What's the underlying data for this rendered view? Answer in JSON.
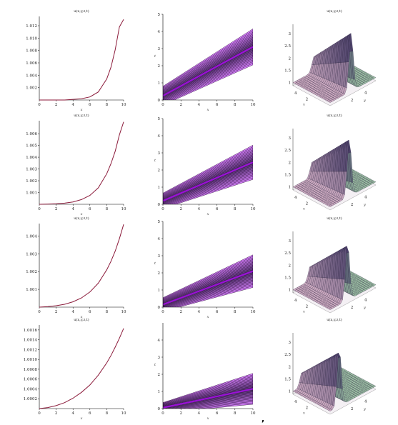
{
  "figure": {
    "bottom_mark": ","
  },
  "chart_data": [
    {
      "type": "line",
      "title": "u(x,y,z,t)",
      "xlabel": "x",
      "ylabel": "",
      "xlim": [
        0,
        10
      ],
      "ylim": [
        1.0,
        1.0135
      ],
      "x_ticks": [
        "0",
        "2",
        "4",
        "6",
        "8",
        "10"
      ],
      "y_ticks": [
        "1.002",
        "1.004",
        "1.006",
        "1.008",
        "1.010",
        "1.012"
      ],
      "y_tick_values": [
        1.002,
        1.004,
        1.006,
        1.008,
        1.01,
        1.012
      ],
      "series": [
        {
          "x": [
            0,
            1,
            2,
            3,
            4,
            5,
            6,
            7,
            8,
            8.5,
            9,
            9.5,
            10
          ],
          "y": [
            1.0,
            1.0,
            1.0,
            1.0,
            1.0001,
            1.0002,
            1.0005,
            1.0013,
            1.0034,
            1.0053,
            1.0081,
            1.0118,
            1.013
          ]
        }
      ],
      "line_color": "#8b1a3a"
    },
    {
      "type": "area",
      "xlabel": "x",
      "ylabel": "t",
      "xlim": [
        0,
        10
      ],
      "ylim": [
        0,
        5
      ],
      "x_ticks": [
        "0",
        "2",
        "4",
        "6",
        "8",
        "10"
      ],
      "y_ticks": [
        "0",
        "1",
        "2",
        "3",
        "4",
        "5"
      ],
      "band": {
        "center": [
          0.25,
          3.1
        ],
        "outer_halfwidth": [
          0.55,
          1.05
        ]
      }
    },
    {
      "type": "surface",
      "title": "u(x,y,z,t)",
      "z_ticks": [
        "1",
        "1.5",
        "2",
        "2.5",
        "3"
      ],
      "x_ticks": [
        "2",
        "4"
      ],
      "y_ticks": [
        "2",
        "4"
      ],
      "xlabel": "x",
      "ylabel": "y",
      "peak": 0.46
    },
    {
      "type": "line",
      "title": "u(x,y,z,t)",
      "xlabel": "x",
      "ylabel": "",
      "xlim": [
        0,
        10
      ],
      "ylim": [
        1.0,
        1.0071
      ],
      "x_ticks": [
        "0",
        "2",
        "4",
        "6",
        "8",
        "10"
      ],
      "y_ticks": [
        "1.001",
        "1.002",
        "1.003",
        "1.004",
        "1.005",
        "1.006"
      ],
      "y_tick_values": [
        1.001,
        1.002,
        1.003,
        1.004,
        1.005,
        1.006
      ],
      "series": [
        {
          "x": [
            0,
            1,
            2,
            3,
            4,
            5,
            6,
            7,
            8,
            8.5,
            9,
            9.5,
            10
          ],
          "y": [
            1.0,
            1.00002,
            1.00005,
            1.0001,
            1.0002,
            1.0004,
            1.00075,
            1.0014,
            1.0026,
            1.00345,
            1.0045,
            1.0059,
            1.007
          ]
        }
      ],
      "line_color": "#8b1a3a"
    },
    {
      "type": "area",
      "xlabel": "x",
      "ylabel": "t",
      "xlim": [
        0,
        10
      ],
      "ylim": [
        0,
        5
      ],
      "x_ticks": [
        "0",
        "2",
        "4",
        "6",
        "8",
        "10"
      ],
      "y_ticks": [
        "0",
        "1",
        "2",
        "3",
        "4",
        "5"
      ],
      "band": {
        "center": [
          0.2,
          2.45
        ],
        "outer_halfwidth": [
          0.45,
          1.0
        ]
      }
    },
    {
      "type": "surface",
      "title": "u(x,y,z,t)",
      "z_ticks": [
        "1",
        "1.5",
        "2",
        "2.5",
        "3"
      ],
      "x_ticks": [
        "2",
        "4"
      ],
      "y_ticks": [
        "2",
        "4"
      ],
      "xlabel": "x",
      "ylabel": "y",
      "peak": 0.42
    },
    {
      "type": "line",
      "title": "u(x,y,z,t)",
      "xlabel": "x",
      "ylabel": "",
      "xlim": [
        0,
        10
      ],
      "ylim": [
        1.0,
        1.0047
      ],
      "x_ticks": [
        "0",
        "2",
        "4",
        "6",
        "8",
        "10"
      ],
      "y_ticks": [
        "1.001",
        "1.002",
        "1.003",
        "1.004"
      ],
      "y_tick_values": [
        1.001,
        1.002,
        1.003,
        1.004
      ],
      "series": [
        {
          "x": [
            0,
            1,
            2,
            3,
            4,
            5,
            6,
            7,
            8,
            8.5,
            9,
            9.5,
            10
          ],
          "y": [
            1.0,
            1.00003,
            1.00008,
            1.00016,
            1.0003,
            1.00052,
            1.00085,
            1.00135,
            1.0021,
            1.00258,
            1.00315,
            1.00385,
            1.00465
          ]
        }
      ],
      "line_color": "#8b1a3a"
    },
    {
      "type": "area",
      "xlabel": "x",
      "ylabel": "t",
      "xlim": [
        0,
        10
      ],
      "ylim": [
        0,
        5
      ],
      "x_ticks": [
        "0",
        "2",
        "4",
        "6",
        "8",
        "10"
      ],
      "y_ticks": [
        "0",
        "1",
        "2",
        "3",
        "4",
        "5"
      ],
      "band": {
        "center": [
          0.15,
          2.1
        ],
        "outer_halfwidth": [
          0.4,
          0.95
        ]
      }
    },
    {
      "type": "surface",
      "title": "u(x,y,z,t)",
      "z_ticks": [
        "1",
        "1.5",
        "2",
        "2.5",
        "3"
      ],
      "x_ticks": [
        "2",
        "4"
      ],
      "y_ticks": [
        "2",
        "4"
      ],
      "xlabel": "x",
      "ylabel": "y",
      "peak": 0.38
    },
    {
      "type": "line",
      "title": "u(x,y,z,t)",
      "xlabel": "x",
      "ylabel": "",
      "xlim": [
        0,
        10
      ],
      "ylim": [
        1.0,
        1.0017
      ],
      "x_ticks": [
        "0",
        "2",
        "4",
        "6",
        "8",
        "10"
      ],
      "y_ticks": [
        "1.0002",
        "1.0004",
        "1.0006",
        "1.0008",
        "1.0010",
        "1.0012",
        "1.0014",
        "1.0016"
      ],
      "y_tick_values": [
        1.0002,
        1.0004,
        1.0006,
        1.0008,
        1.001,
        1.0012,
        1.0014,
        1.0016
      ],
      "series": [
        {
          "x": [
            0,
            1,
            2,
            3,
            4,
            5,
            6,
            7,
            8,
            8.5,
            9,
            9.5,
            10
          ],
          "y": [
            1.0,
            1.00002,
            1.00006,
            1.00012,
            1.00021,
            1.00033,
            1.00048,
            1.00068,
            1.00093,
            1.00108,
            1.00125,
            1.00143,
            1.00163
          ]
        }
      ],
      "line_color": "#8b1a3a"
    },
    {
      "type": "area",
      "xlabel": "x",
      "ylabel": "t",
      "xlim": [
        0,
        10
      ],
      "ylim": [
        0,
        5
      ],
      "x_ticks": [
        "0",
        "2",
        "4",
        "6",
        "8",
        "10"
      ],
      "y_ticks": [
        "0",
        "1",
        "2",
        "3",
        "4"
      ],
      "band": {
        "center": [
          0.05,
          1.15
        ],
        "outer_halfwidth": [
          0.3,
          0.9
        ]
      }
    },
    {
      "type": "surface",
      "title": "u(x,y,z,t)",
      "z_ticks": [
        "1",
        "1.5",
        "2",
        "2.5",
        "3"
      ],
      "x_ticks": [
        "2",
        "4"
      ],
      "y_ticks": [
        "2",
        "4"
      ],
      "xlabel": "x",
      "ylabel": "y",
      "peak": 0.2
    }
  ]
}
